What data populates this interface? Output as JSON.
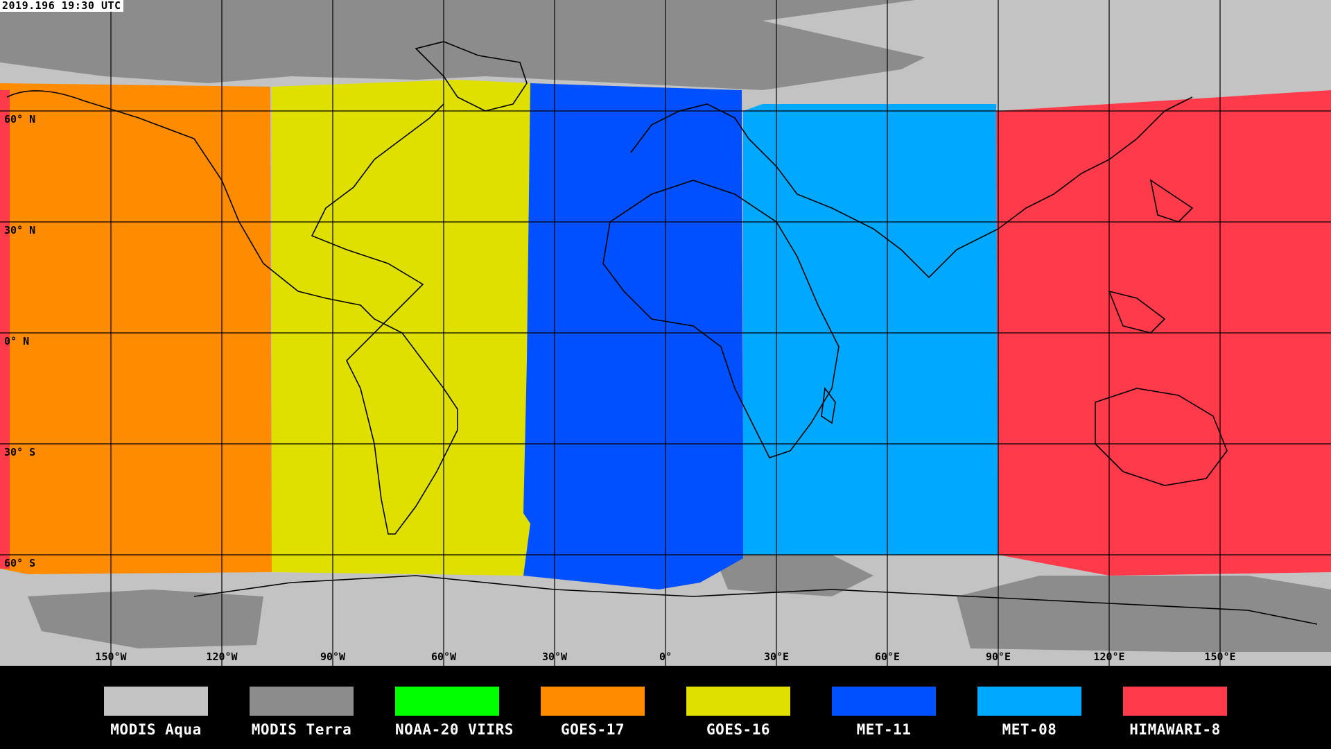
{
  "timestamp": "2019.196 19:30 UTC",
  "lat_labels": [
    "60° N",
    "30° N",
    "0° N",
    "30° S",
    "60° S"
  ],
  "lon_labels": [
    "150°W",
    "120°W",
    "90°W",
    "60°W",
    "30°W",
    "0°",
    "30°E",
    "60°E",
    "90°E",
    "120°E",
    "150°E"
  ],
  "colors": {
    "modis_aqua": "#c3c3c3",
    "modis_terra": "#8c8c8c",
    "noaa20_viirs": "#00ff00",
    "goes17": "#ff8c00",
    "goes16": "#e0e000",
    "met11": "#0050ff",
    "met08": "#00a8ff",
    "himawari8": "#ff3a4a"
  },
  "legend": [
    {
      "label": "MODIS Aqua",
      "color": "#c3c3c3"
    },
    {
      "label": "MODIS Terra",
      "color": "#8c8c8c"
    },
    {
      "label": "NOAA-20 VIIRS",
      "color": "#00ff00"
    },
    {
      "label": "GOES-17",
      "color": "#ff8c00"
    },
    {
      "label": "GOES-16",
      "color": "#e0e000"
    },
    {
      "label": "MET-11",
      "color": "#0050ff"
    },
    {
      "label": "MET-08",
      "color": "#00a8ff"
    },
    {
      "label": "HIMAWARI-8",
      "color": "#ff3a4a"
    }
  ]
}
